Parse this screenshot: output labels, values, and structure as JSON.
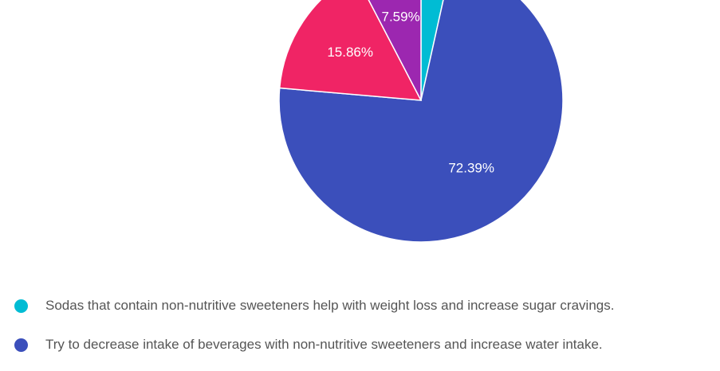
{
  "chart_data": {
    "type": "pie",
    "title": "",
    "slices": [
      {
        "name": "Sodas that contain non-nutritive sweeteners help with weight loss and increase sugar cravings.",
        "value": 3.45,
        "label": "",
        "color": "#00bcd4"
      },
      {
        "name": "Try to decrease intake of beverages with non-nutritive sweeteners and increase water intake.",
        "value": 72.39,
        "label": "72.39%",
        "color": "#3b4fbb"
      },
      {
        "name": "",
        "value": 15.86,
        "label": "15.86%",
        "color": "#f02465"
      },
      {
        "name": "",
        "value": 7.59,
        "label": "7.59%",
        "color": "#9c27b0"
      }
    ],
    "start_angle_deg": 0,
    "direction": "clockwise",
    "legend_position": "bottom"
  },
  "legend": {
    "items": [
      {
        "label": "Sodas that contain non-nutritive sweeteners help with weight loss and increase sugar cravings.",
        "color": "#00bcd4"
      },
      {
        "label": "Try to decrease intake of beverages with non-nutritive sweeteners and increase water intake.",
        "color": "#3b4fbb"
      }
    ]
  }
}
